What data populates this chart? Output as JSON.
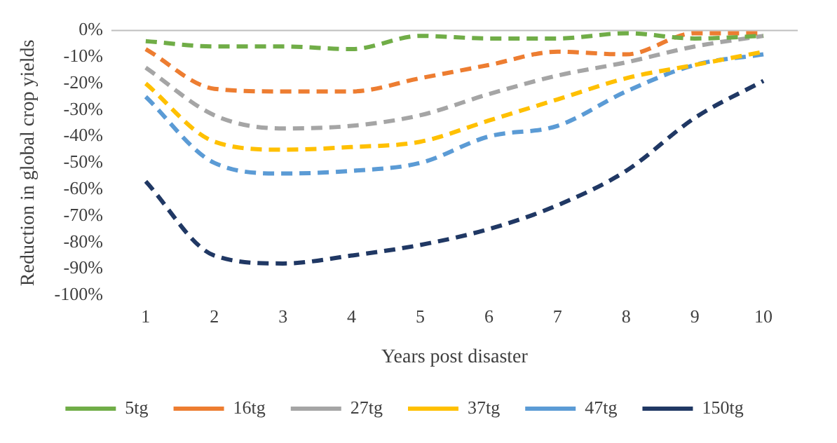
{
  "chart_data": {
    "type": "line",
    "xlabel": "Years post disaster",
    "ylabel": "Reduction in global crop yields",
    "categories": [
      "1",
      "2",
      "3",
      "4",
      "5",
      "6",
      "7",
      "8",
      "9",
      "10"
    ],
    "ylim": [
      -100,
      0
    ],
    "yticks": [
      {
        "value": 0,
        "label": "0%"
      },
      {
        "value": -10,
        "label": "-10%"
      },
      {
        "value": -20,
        "label": "-20%"
      },
      {
        "value": -30,
        "label": "-30%"
      },
      {
        "value": -40,
        "label": "-40%"
      },
      {
        "value": -50,
        "label": "-50%"
      },
      {
        "value": -60,
        "label": "-60%"
      },
      {
        "value": -70,
        "label": "-70%"
      },
      {
        "value": -80,
        "label": "-80%"
      },
      {
        "value": -90,
        "label": "-90%"
      },
      {
        "value": -100,
        "label": "-100%"
      }
    ],
    "grid": false,
    "legend": "bottom",
    "line_style": "dashed",
    "marker": "none",
    "ref_lines": [
      {
        "axis": "y",
        "value": 0,
        "color": "#bfbfbf"
      }
    ],
    "series": [
      {
        "name": "5tg",
        "color": "#70ad47",
        "values": [
          -4,
          -6,
          -6,
          -7,
          -2,
          -3,
          -3,
          -1,
          -3,
          -2
        ]
      },
      {
        "name": "16tg",
        "color": "#ed7d31",
        "values": [
          -7,
          -22,
          -23,
          -23,
          -18,
          -13,
          -8,
          -9,
          -1,
          -1
        ]
      },
      {
        "name": "27tg",
        "color": "#a5a5a5",
        "values": [
          -14,
          -32,
          -37,
          -36,
          -32,
          -24,
          -17,
          -12,
          -6,
          -2
        ]
      },
      {
        "name": "37tg",
        "color": "#ffc000",
        "values": [
          -20,
          -42,
          -45,
          -44,
          -42,
          -34,
          -26,
          -18,
          -13,
          -8
        ]
      },
      {
        "name": "47tg",
        "color": "#5b9bd5",
        "values": [
          -25,
          -50,
          -54,
          -53,
          -50,
          -40,
          -36,
          -23,
          -13,
          -9
        ]
      },
      {
        "name": "150tg",
        "color": "#203864",
        "values": [
          -57,
          -85,
          -88,
          -85,
          -81,
          -75,
          -66,
          -53,
          -33,
          -19
        ]
      }
    ]
  }
}
